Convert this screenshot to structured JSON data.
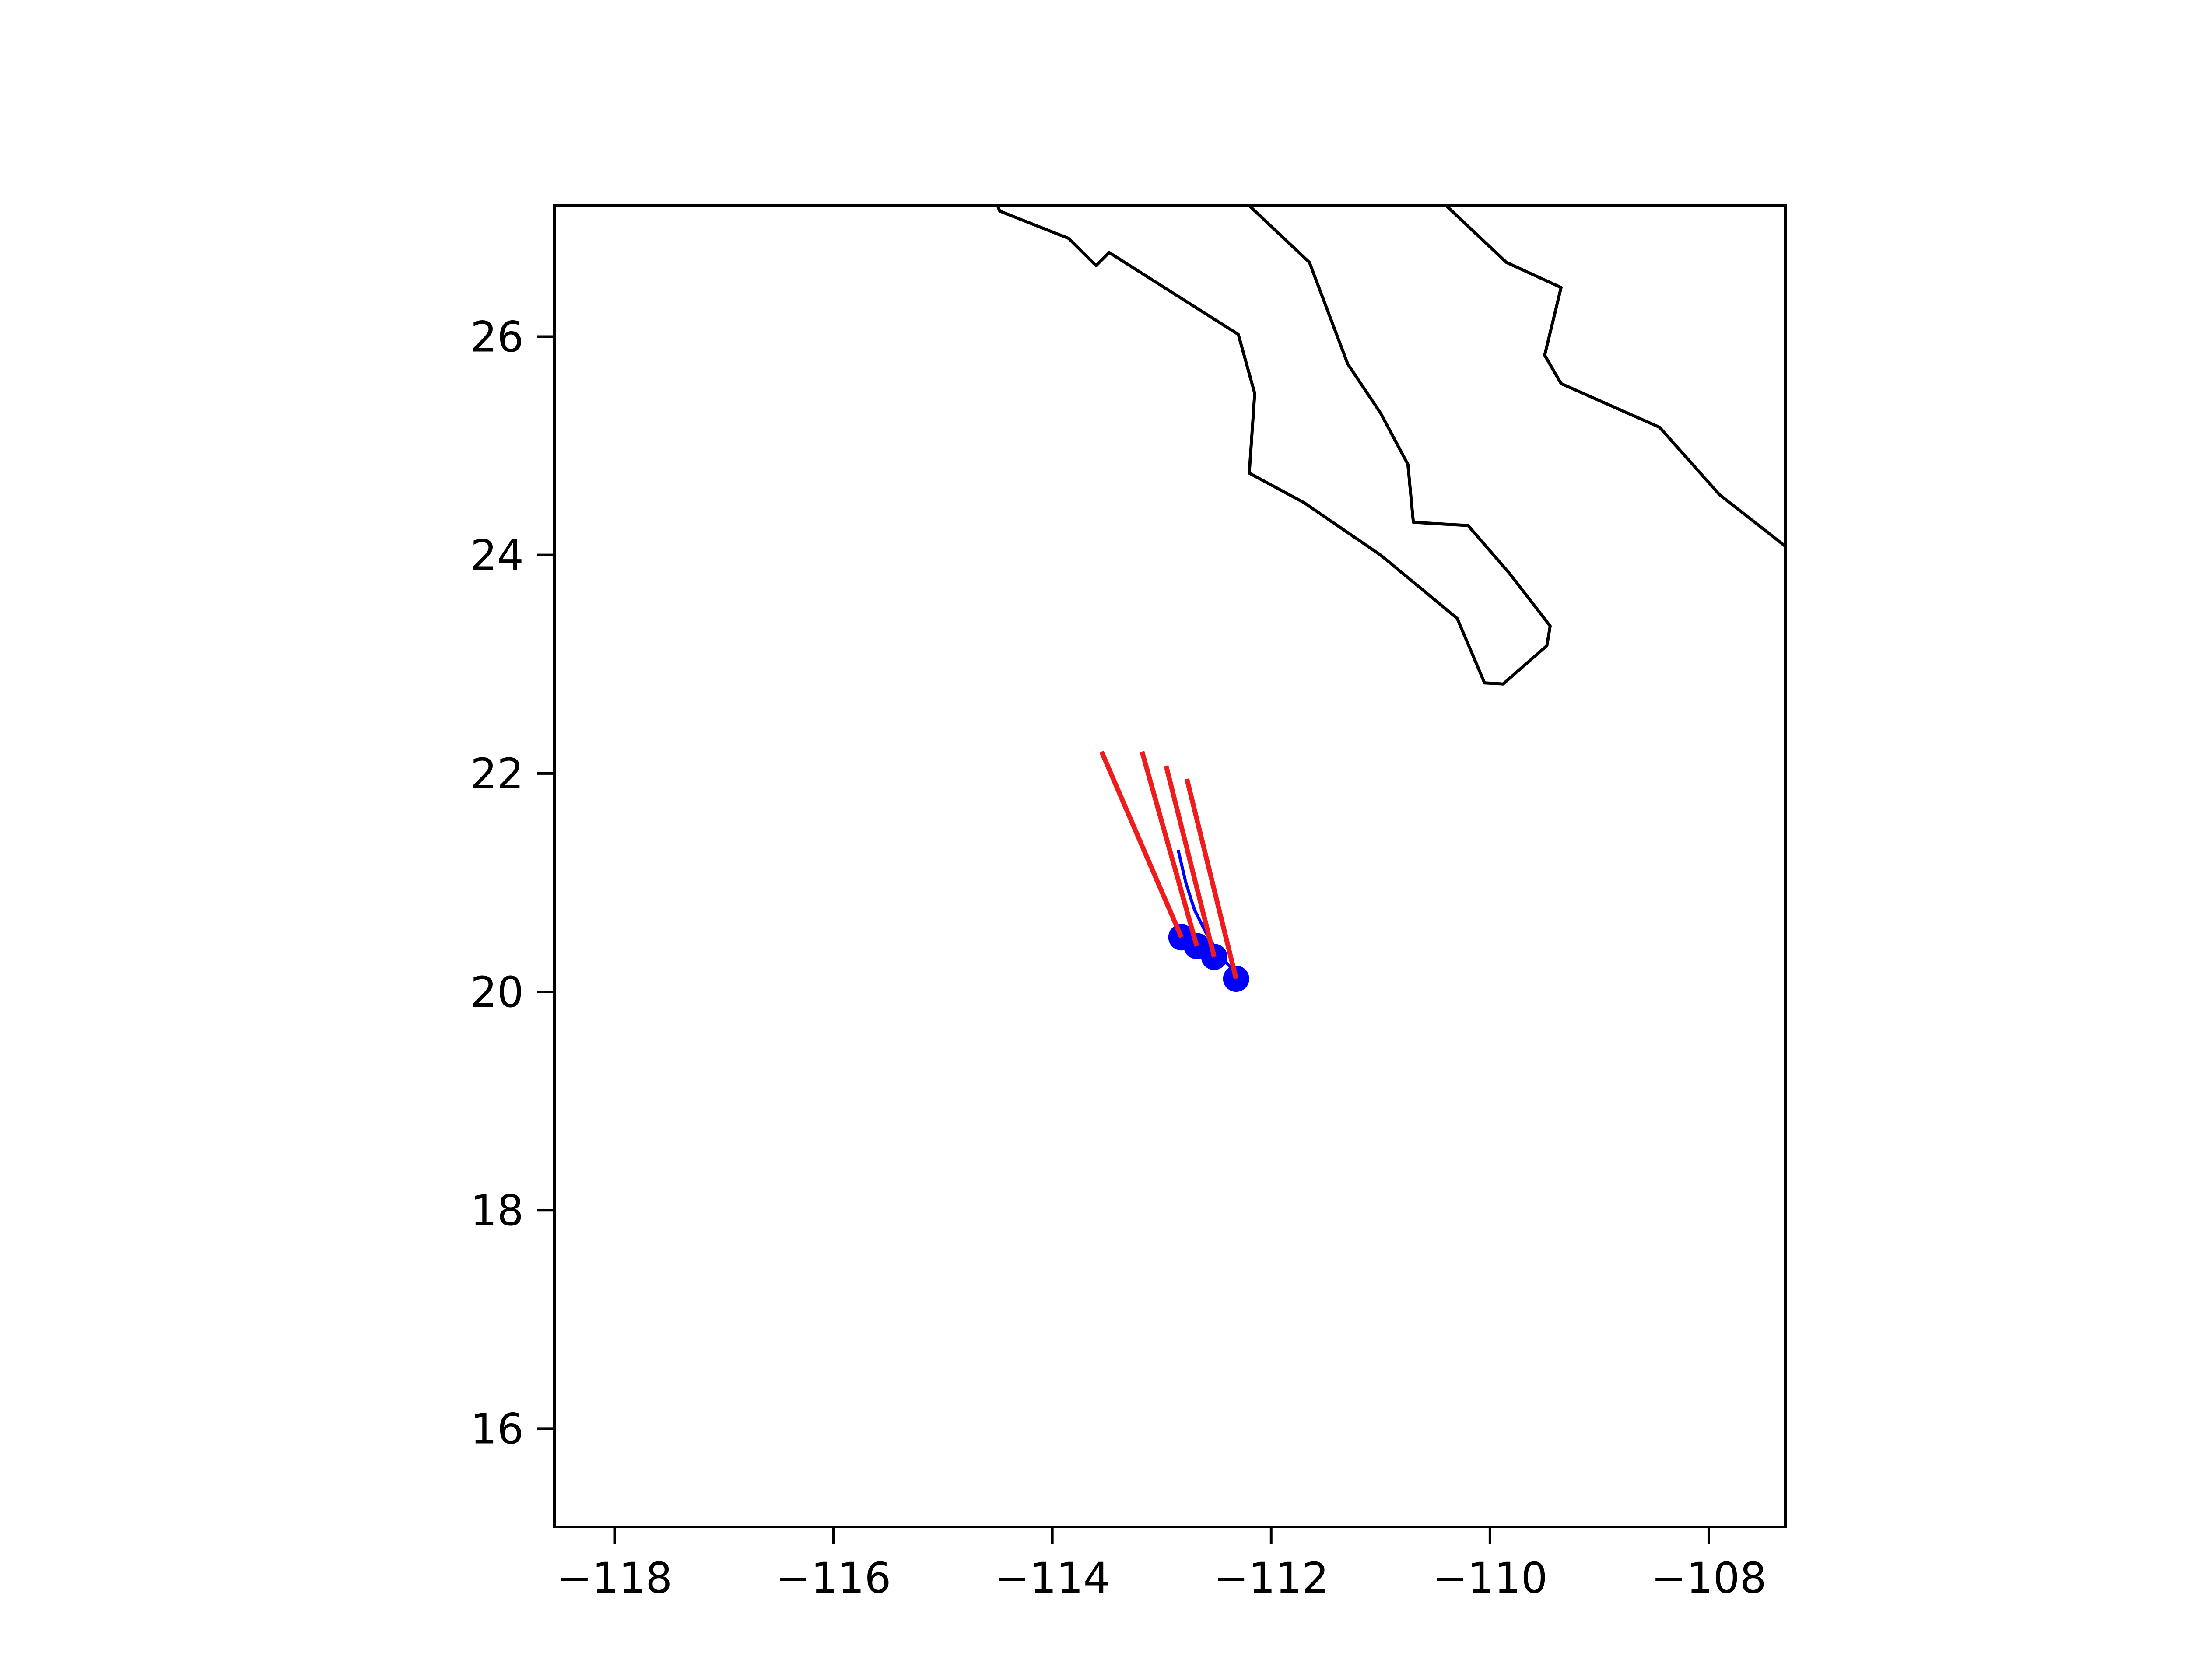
{
  "chart_data": {
    "type": "scatter",
    "title": "",
    "xlabel": "",
    "ylabel": "",
    "xlim": [
      -118.55,
      -107.3
    ],
    "ylim": [
      15.1,
      27.2
    ],
    "grid": false,
    "legend": "none",
    "xticks": [
      -118,
      -116,
      -114,
      -112,
      -110,
      -108
    ],
    "yticks": [
      16,
      18,
      20,
      22,
      24,
      26
    ],
    "xtick_labels": [
      "−118",
      "−116",
      "−114",
      "−112",
      "−110",
      "−108"
    ],
    "ytick_labels": [
      "16",
      "18",
      "20",
      "22",
      "24",
      "26"
    ],
    "coastlines": [
      [
        [
          -114.5,
          27.2
        ],
        [
          -114.48,
          27.15
        ],
        [
          -113.85,
          26.9
        ],
        [
          -113.6,
          26.65
        ],
        [
          -113.48,
          26.77
        ],
        [
          -112.3,
          26.02
        ],
        [
          -112.15,
          25.48
        ],
        [
          -112.2,
          24.75
        ],
        [
          -111.7,
          24.48
        ],
        [
          -111.0,
          24.0
        ],
        [
          -110.3,
          23.42
        ],
        [
          -110.05,
          22.83
        ],
        [
          -109.88,
          22.82
        ],
        [
          -109.48,
          23.17
        ],
        [
          -109.45,
          23.35
        ],
        [
          -109.82,
          23.83
        ],
        [
          -110.2,
          24.27
        ],
        [
          -110.7,
          24.3
        ],
        [
          -110.75,
          24.83
        ],
        [
          -111.0,
          25.3
        ],
        [
          -111.3,
          25.75
        ],
        [
          -111.65,
          26.68
        ],
        [
          -112.2,
          27.2
        ]
      ],
      [
        [
          -110.4,
          27.2
        ],
        [
          -109.85,
          26.68
        ],
        [
          -109.35,
          26.45
        ],
        [
          -109.5,
          25.83
        ],
        [
          -109.35,
          25.57
        ],
        [
          -108.45,
          25.17
        ],
        [
          -107.9,
          24.55
        ],
        [
          -107.3,
          24.08
        ]
      ]
    ],
    "track_x": [
      -112.85,
      -112.78,
      -112.7,
      -112.6,
      -112.48,
      -112.35,
      -112.3
    ],
    "track_y": [
      21.3,
      21.0,
      20.75,
      20.55,
      20.35,
      20.2,
      20.12
    ],
    "points_x": [
      -112.82,
      -112.68,
      -112.52,
      -112.32
    ],
    "points_y": [
      20.5,
      20.42,
      20.32,
      20.12
    ],
    "vectors": [
      {
        "x0": -113.55,
        "y0": 22.2,
        "x1": -112.82,
        "y1": 20.5
      },
      {
        "x0": -113.18,
        "y0": 22.2,
        "x1": -112.68,
        "y1": 20.42
      },
      {
        "x0": -112.96,
        "y0": 22.07,
        "x1": -112.52,
        "y1": 20.32
      },
      {
        "x0": -112.77,
        "y0": 21.95,
        "x1": -112.32,
        "y1": 20.12
      }
    ],
    "colors": {
      "coast": "#000000",
      "vector": "#ee1c1c",
      "points": "#0000ff",
      "track": "#0000ff",
      "axes": "#000000"
    }
  }
}
